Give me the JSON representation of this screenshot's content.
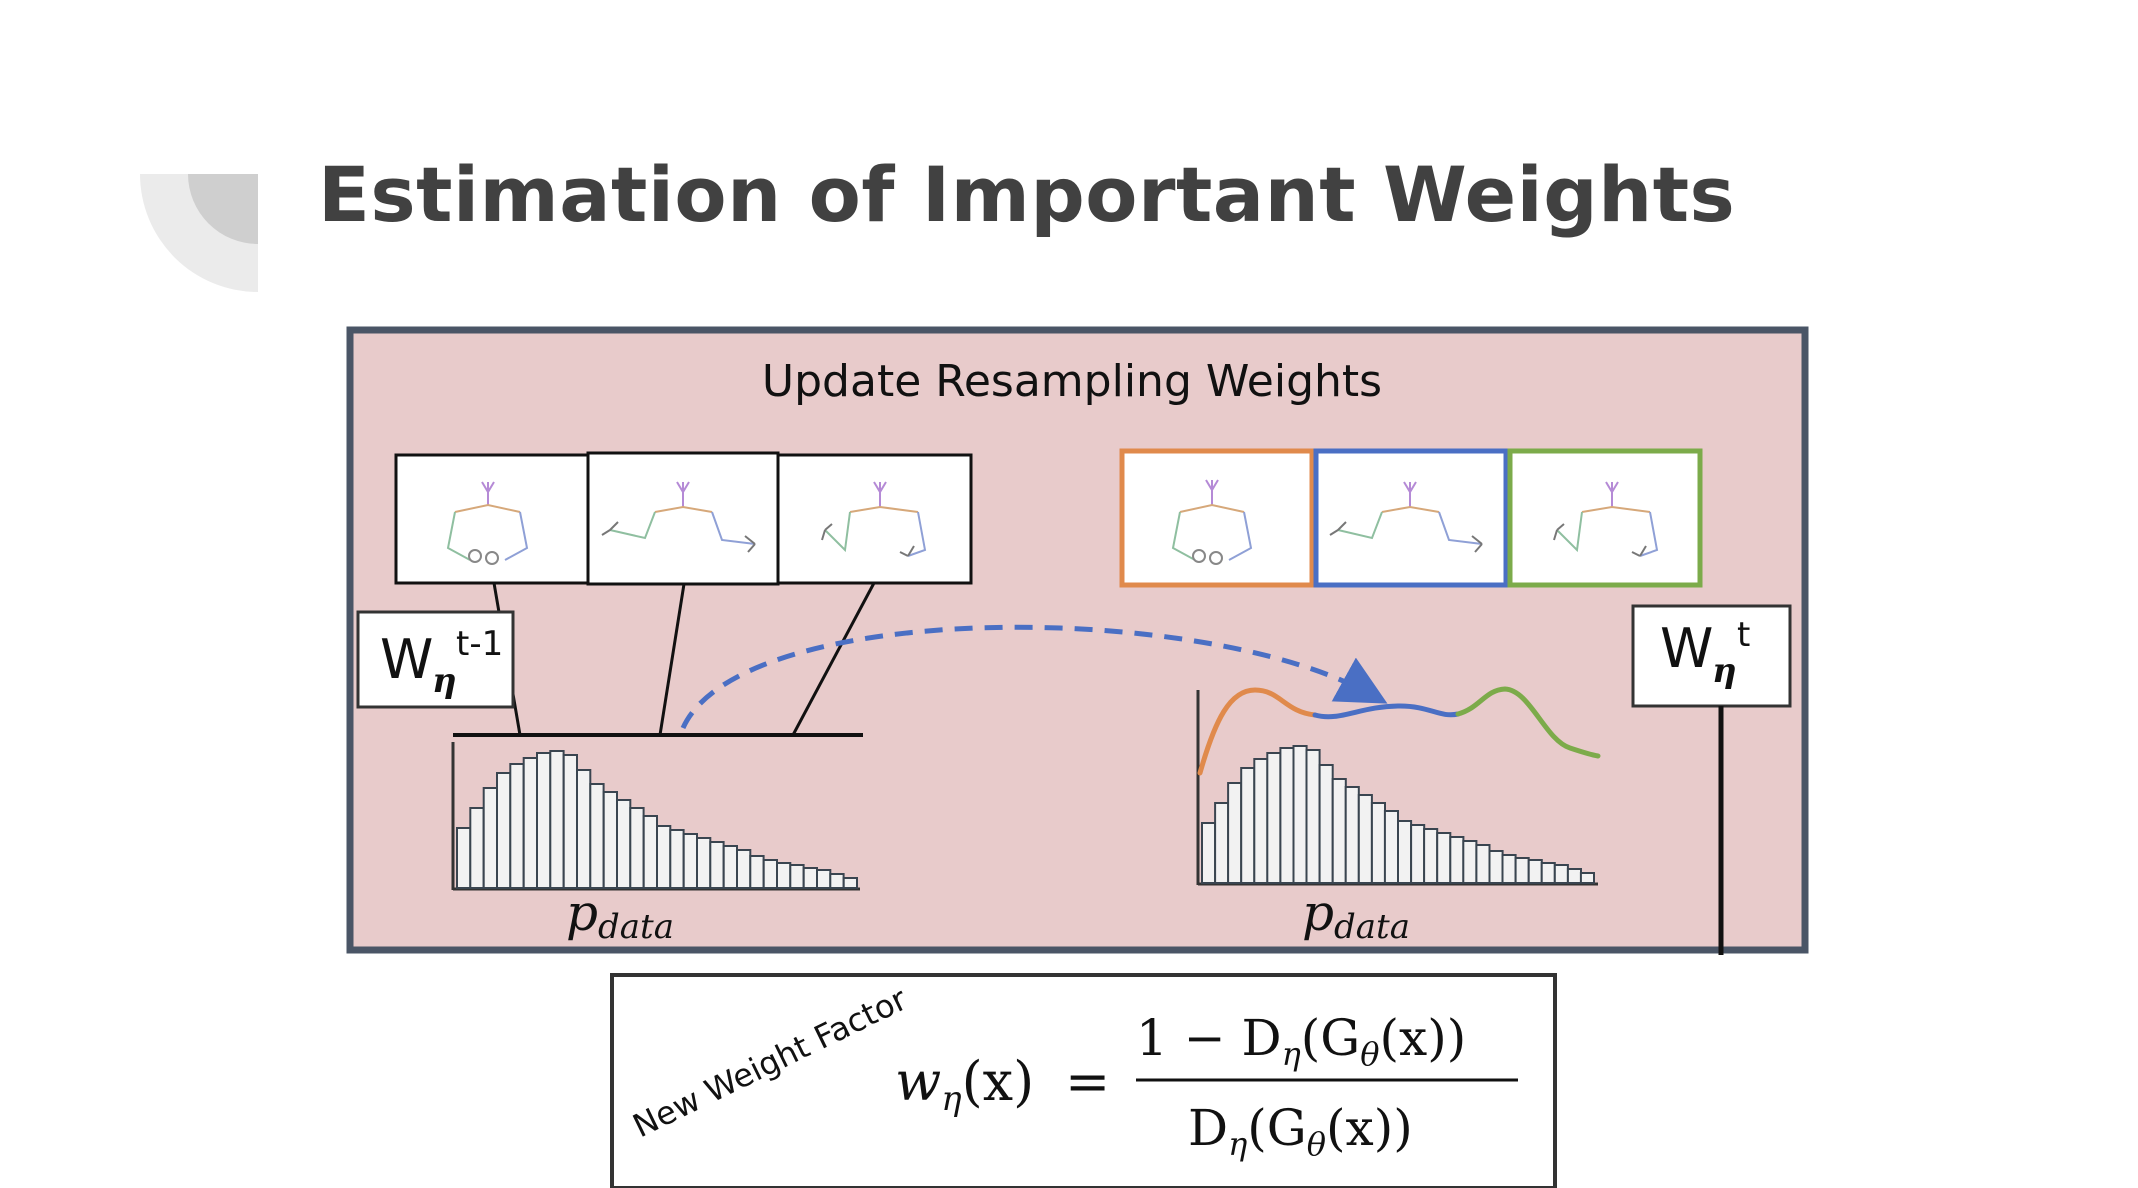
{
  "slide": {
    "title": "Estimation of Important Weights"
  },
  "diagram": {
    "panel_title": "Update Resampling Weights",
    "left_weight": {
      "base": "W",
      "subscript": "η",
      "superscript": "t-1"
    },
    "right_weight": {
      "base": "W",
      "subscript": "η",
      "superscript": "t"
    },
    "left_hist_label": {
      "base": "p",
      "subscript": "data"
    },
    "right_hist_label": {
      "base": "p",
      "subscript": "data"
    },
    "distribution_colors": [
      "#e08a4c",
      "#4a6fc4",
      "#7cab4a"
    ],
    "panel_background": "#e8cbcb",
    "panel_border": "#4a5566"
  },
  "formula": {
    "label": "New Weight Factor",
    "lhs_w": "w",
    "lhs_sub": "η",
    "lhs_arg": "(x)",
    "equals": "=",
    "numerator": {
      "prefix": "1 − D",
      "sub_eta": "η",
      "open": "(G",
      "sub_theta": "θ",
      "tail": "(x))"
    },
    "denominator": {
      "prefix": "D",
      "sub_eta": "η",
      "open": "(G",
      "sub_theta": "θ",
      "tail": "(x))"
    }
  }
}
